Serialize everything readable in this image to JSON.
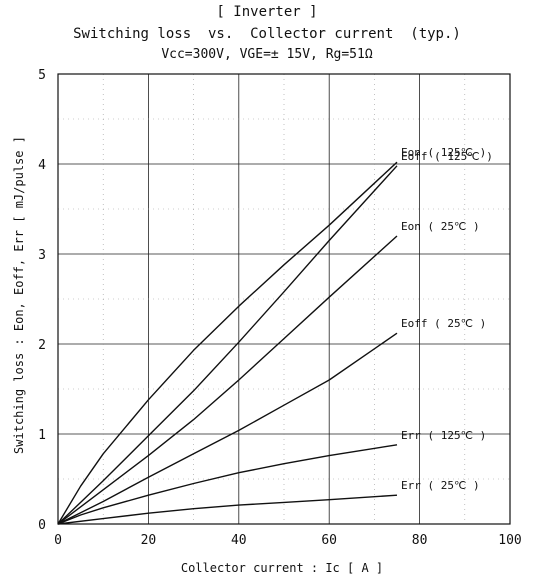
{
  "chart_data": {
    "type": "line",
    "title": "[ Inverter ]",
    "subtitle": "Switching loss  vs.  Collector current  (typ.)",
    "conditions": "Vcc=300V, VGE=± 15V, Rg=51Ω",
    "xlabel": "Collector current  :  Ic  [ A ]",
    "ylabel": "Switching loss  :  Eon, Eoff, Err  [ mJ/pulse ]",
    "xlim": [
      0,
      100
    ],
    "ylim": [
      0,
      5
    ],
    "xticks": [
      0,
      20,
      40,
      60,
      80,
      100
    ],
    "yticks": [
      0,
      1,
      2,
      3,
      4,
      5
    ],
    "grid": true,
    "legend": "inline labels at line ends",
    "series": [
      {
        "name": "Eon ( 125℃ )",
        "x": [
          0,
          5,
          10,
          20,
          30,
          40,
          50,
          60,
          75
        ],
        "y": [
          0,
          0.42,
          0.78,
          1.38,
          1.93,
          2.42,
          2.88,
          3.32,
          4.02
        ]
      },
      {
        "name": "Eoff ( 125℃ )",
        "x": [
          0,
          10,
          20,
          30,
          40,
          50,
          60,
          75
        ],
        "y": [
          0,
          0.48,
          0.98,
          1.48,
          2.02,
          2.58,
          3.15,
          3.98
        ]
      },
      {
        "name": "Eon ( 25℃ )",
        "x": [
          0,
          10,
          20,
          30,
          40,
          50,
          60,
          75
        ],
        "y": [
          0,
          0.38,
          0.76,
          1.16,
          1.6,
          2.06,
          2.52,
          3.2
        ]
      },
      {
        "name": "Eoff ( 25℃ )",
        "x": [
          0,
          10,
          20,
          30,
          40,
          50,
          60,
          75
        ],
        "y": [
          0,
          0.25,
          0.52,
          0.78,
          1.04,
          1.32,
          1.6,
          2.12
        ]
      },
      {
        "name": "Err ( 125℃ )",
        "x": [
          0,
          5,
          10,
          20,
          30,
          40,
          50,
          60,
          75
        ],
        "y": [
          0,
          0.1,
          0.18,
          0.32,
          0.45,
          0.57,
          0.67,
          0.76,
          0.88
        ]
      },
      {
        "name": "Err ( 25℃ )",
        "x": [
          0,
          10,
          20,
          30,
          40,
          50,
          60,
          75
        ],
        "y": [
          0,
          0.06,
          0.12,
          0.17,
          0.21,
          0.24,
          0.27,
          0.32
        ]
      }
    ]
  }
}
